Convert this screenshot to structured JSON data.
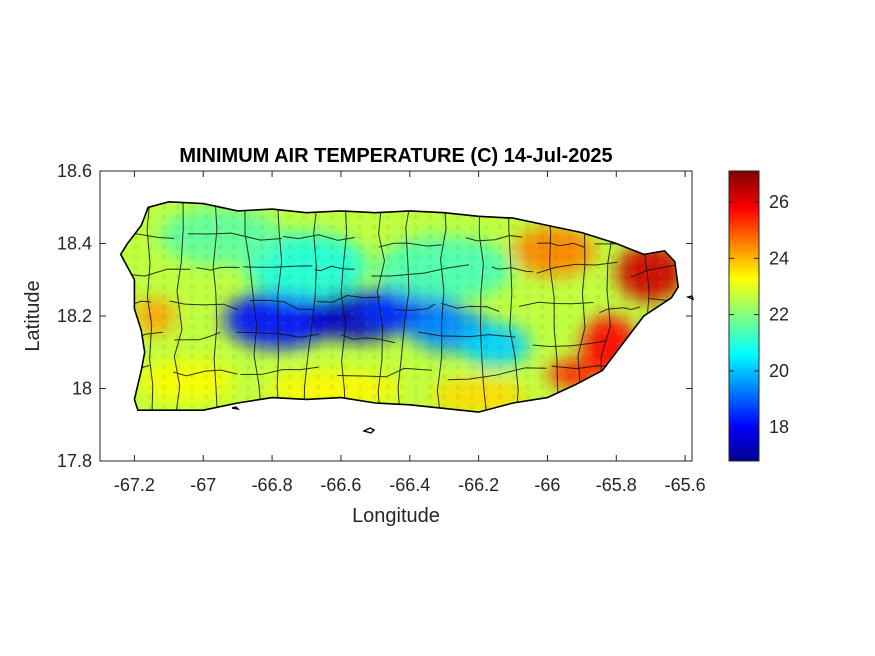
{
  "title": "MINIMUM AIR TEMPERATURE (C) 14-Jul-2025",
  "xlabel": "Longitude",
  "ylabel": "Latitude",
  "x_ticks": [
    "-67.2",
    "-67",
    "-66.8",
    "-66.6",
    "-66.4",
    "-66.2",
    "-66",
    "-65.8",
    "-65.6"
  ],
  "y_ticks": [
    "17.8",
    "18",
    "18.2",
    "18.4",
    "18.6"
  ],
  "colorbar_ticks": [
    "18",
    "20",
    "22",
    "24",
    "26"
  ],
  "colormap": "jet",
  "colors": {
    "cold": "#00008f",
    "cool": "#0080ff",
    "mild": "#20d0d0",
    "warm": "#ffff00",
    "hot": "#ff8000",
    "hottest": "#800000",
    "boundary": "#000000"
  },
  "chart_data": {
    "type": "heatmap",
    "title": "MINIMUM AIR TEMPERATURE (C) 14-Jul-2025",
    "xlabel": "Longitude",
    "ylabel": "Latitude",
    "xlim": [
      -67.3,
      -65.58
    ],
    "ylim": [
      17.8,
      18.6
    ],
    "x_ticks": [
      -67.2,
      -67,
      -66.8,
      -66.6,
      -66.4,
      -66.2,
      -66,
      -65.8,
      -65.6
    ],
    "y_ticks": [
      17.8,
      18,
      18.2,
      18.4,
      18.6
    ],
    "colorbar": {
      "min": 16.8,
      "max": 27.1,
      "ticks": [
        18,
        20,
        22,
        24,
        26
      ],
      "colormap": "jet"
    },
    "region": "Puerto Rico",
    "outline": [
      [
        -67.24,
        18.37
      ],
      [
        -67.22,
        18.4
      ],
      [
        -67.18,
        18.45
      ],
      [
        -67.16,
        18.5
      ],
      [
        -67.1,
        18.515
      ],
      [
        -67.0,
        18.51
      ],
      [
        -66.9,
        18.49
      ],
      [
        -66.8,
        18.495
      ],
      [
        -66.7,
        18.485
      ],
      [
        -66.6,
        18.49
      ],
      [
        -66.5,
        18.485
      ],
      [
        -66.4,
        18.49
      ],
      [
        -66.3,
        18.485
      ],
      [
        -66.2,
        18.475
      ],
      [
        -66.1,
        18.47
      ],
      [
        -66.0,
        18.45
      ],
      [
        -65.9,
        18.43
      ],
      [
        -65.8,
        18.4
      ],
      [
        -65.72,
        18.37
      ],
      [
        -65.66,
        18.38
      ],
      [
        -65.63,
        18.35
      ],
      [
        -65.62,
        18.28
      ],
      [
        -65.64,
        18.25
      ],
      [
        -65.72,
        18.2
      ],
      [
        -65.76,
        18.15
      ],
      [
        -65.8,
        18.1
      ],
      [
        -65.84,
        18.05
      ],
      [
        -65.92,
        18.01
      ],
      [
        -66.0,
        17.975
      ],
      [
        -66.1,
        17.96
      ],
      [
        -66.2,
        17.935
      ],
      [
        -66.3,
        17.945
      ],
      [
        -66.4,
        17.955
      ],
      [
        -66.5,
        17.96
      ],
      [
        -66.6,
        17.975
      ],
      [
        -66.7,
        17.97
      ],
      [
        -66.8,
        17.975
      ],
      [
        -66.9,
        17.96
      ],
      [
        -67.0,
        17.94
      ],
      [
        -67.1,
        17.94
      ],
      [
        -67.19,
        17.94
      ],
      [
        -67.2,
        17.97
      ],
      [
        -67.18,
        18.05
      ],
      [
        -67.17,
        18.1
      ],
      [
        -67.18,
        18.16
      ],
      [
        -67.2,
        18.22
      ],
      [
        -67.2,
        18.3
      ],
      [
        -67.24,
        18.37
      ]
    ],
    "temperature_blobs": [
      {
        "lon": -66.78,
        "lat": 18.19,
        "rx": 0.16,
        "ry": 0.08,
        "value": 18.2
      },
      {
        "lon": -66.55,
        "lat": 18.2,
        "rx": 0.14,
        "ry": 0.07,
        "value": 17.5
      },
      {
        "lon": -66.4,
        "lat": 18.22,
        "rx": 0.14,
        "ry": 0.07,
        "value": 18.6
      },
      {
        "lon": -66.28,
        "lat": 18.16,
        "rx": 0.12,
        "ry": 0.06,
        "value": 19.5
      },
      {
        "lon": -66.15,
        "lat": 18.12,
        "rx": 0.1,
        "ry": 0.06,
        "value": 20.2
      },
      {
        "lon": -66.7,
        "lat": 18.34,
        "rx": 0.18,
        "ry": 0.09,
        "value": 21.0
      },
      {
        "lon": -66.3,
        "lat": 18.33,
        "rx": 0.2,
        "ry": 0.09,
        "value": 21.4
      },
      {
        "lon": -66.95,
        "lat": 18.42,
        "rx": 0.18,
        "ry": 0.08,
        "value": 21.6
      },
      {
        "lon": -65.98,
        "lat": 18.38,
        "rx": 0.12,
        "ry": 0.07,
        "value": 24.5
      },
      {
        "lon": -65.7,
        "lat": 18.32,
        "rx": 0.1,
        "ry": 0.08,
        "value": 26.3
      },
      {
        "lon": -65.82,
        "lat": 18.12,
        "rx": 0.08,
        "ry": 0.08,
        "value": 25.8
      },
      {
        "lon": -65.92,
        "lat": 18.04,
        "rx": 0.08,
        "ry": 0.04,
        "value": 25.5
      },
      {
        "lon": -67.14,
        "lat": 18.2,
        "rx": 0.06,
        "ry": 0.05,
        "value": 24.2
      },
      {
        "lon": -66.62,
        "lat": 18.0,
        "rx": 0.2,
        "ry": 0.05,
        "value": 23.3
      },
      {
        "lon": -66.2,
        "lat": 17.98,
        "rx": 0.14,
        "ry": 0.05,
        "value": 23.6
      },
      {
        "lon": -67.05,
        "lat": 18.02,
        "rx": 0.14,
        "ry": 0.06,
        "value": 23.2
      }
    ]
  }
}
